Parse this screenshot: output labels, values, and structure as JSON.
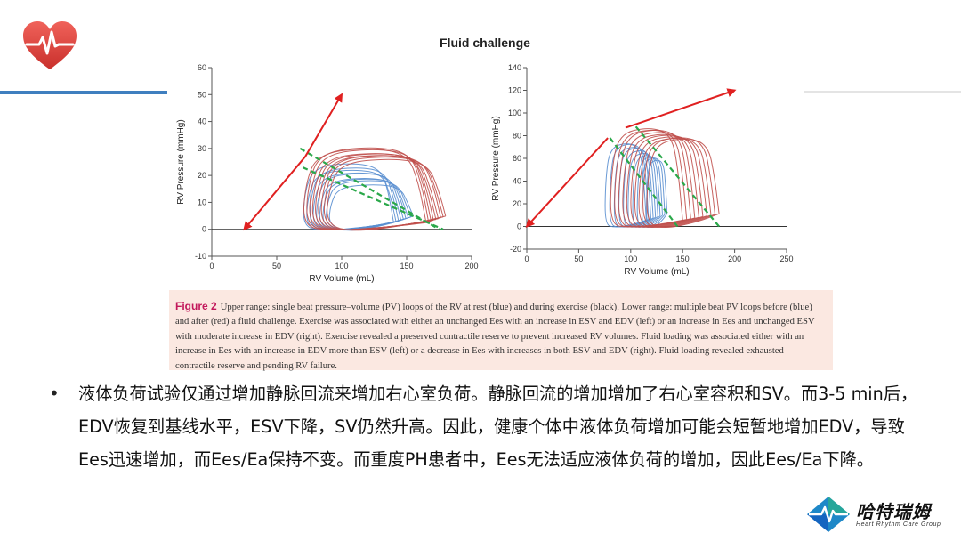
{
  "colors": {
    "accent_blue": "#3f7fbf",
    "loop_blue": "#5a8fd0",
    "loop_red": "#c0504d",
    "slope_green": "#2aa84a",
    "arrow_red": "#e02020",
    "caption_bg": "#fbe8e1",
    "figure_label": "#c2185b"
  },
  "figure": {
    "title": "Fluid challenge",
    "caption_label": "Figure 2",
    "caption_text": "Upper range: single beat pressure–volume (PV) loops of the RV at rest (blue) and during exercise (black). Lower range: multiple beat PV loops before (blue) and after (red) a fluid challenge. Exercise was associated with either an unchanged Ees with an increase in ESV and EDV (left) or an increase in Ees and unchanged ESV with moderate increase in EDV (right). Exercise revealed a preserved contractile reserve to prevent increased RV volumes. Fluid loading was associated either with an increase in Ees with an increase in EDV more than ESV (left) or a decrease in Ees with increases in both ESV and EDV (right). Fluid loading revealed exhausted contractile reserve and pending RV failure."
  },
  "chart_data": [
    {
      "type": "line",
      "xlabel": "RV Volume (mL)",
      "ylabel": "RV Pressure (mmHg)",
      "xlim": [
        0,
        200
      ],
      "ylim": [
        -10,
        60
      ],
      "xticks": [
        0,
        50,
        100,
        150,
        200
      ],
      "yticks": [
        -10,
        0,
        10,
        20,
        30,
        40,
        50,
        60
      ],
      "series": [
        {
          "color": "blue",
          "loops": 9,
          "esv_range": [
            70,
            90
          ],
          "edv_range": [
            140,
            155
          ],
          "peak_pressure_range": [
            16,
            24
          ]
        },
        {
          "color": "red",
          "loops": 9,
          "esv_range": [
            70,
            88
          ],
          "edv_range": [
            165,
            180
          ],
          "peak_pressure_range": [
            26,
            31
          ]
        }
      ],
      "ees_lines": [
        {
          "x": [
            68,
            175
          ],
          "y": [
            30,
            0
          ]
        },
        {
          "x": [
            70,
            178
          ],
          "y": [
            23,
            0
          ]
        }
      ],
      "arrows": [
        {
          "from": [
            72,
            27
          ],
          "to": [
            100,
            50
          ]
        },
        {
          "from": [
            72,
            27
          ],
          "to": [
            25,
            0
          ]
        }
      ]
    },
    {
      "type": "line",
      "xlabel": "RV Volume (mL)",
      "ylabel": "RV Pressure (mmHg)",
      "xlim": [
        0,
        250
      ],
      "ylim": [
        -20,
        140
      ],
      "xticks": [
        0,
        50,
        100,
        150,
        200,
        250
      ],
      "yticks": [
        -20,
        0,
        20,
        40,
        60,
        80,
        100,
        120,
        140
      ],
      "series": [
        {
          "color": "blue",
          "loops": 10,
          "esv_range": [
            75,
            115
          ],
          "edv_range": [
            115,
            135
          ],
          "peak_pressure_range": [
            55,
            75
          ]
        },
        {
          "color": "red",
          "loops": 10,
          "esv_range": [
            80,
            115
          ],
          "edv_range": [
            150,
            185
          ],
          "peak_pressure_range": [
            75,
            88
          ]
        }
      ],
      "ees_lines": [
        {
          "x": [
            80,
            145
          ],
          "y": [
            78,
            0
          ]
        },
        {
          "x": [
            105,
            185
          ],
          "y": [
            88,
            0
          ]
        }
      ],
      "arrows": [
        {
          "from": [
            95,
            87
          ],
          "to": [
            200,
            120
          ]
        },
        {
          "from": [
            78,
            78
          ],
          "to": [
            0,
            0
          ]
        }
      ]
    }
  ],
  "bullet": {
    "text": "液体负荷试验仅通过增加静脉回流来增加右心室负荷。静脉回流的增加增加了右心室容积和SV。而3-5 min后，EDV恢复到基线水平，ESV下降，SV仍然升高。因此，健康个体中液体负荷增加可能会短暂地增加EDV，导致Ees迅速增加，而Ees/Ea保持不变。而重度PH患者中，Ees无法适应液体负荷的增加，因此Ees/Ea下降。"
  },
  "brand": {
    "name": "哈特瑞姆",
    "subtitle": "Heart Rhythm Care Group",
    "heart_icon": "heart-ecg-icon",
    "diamond_icon": "diamond-ecg-icon"
  }
}
